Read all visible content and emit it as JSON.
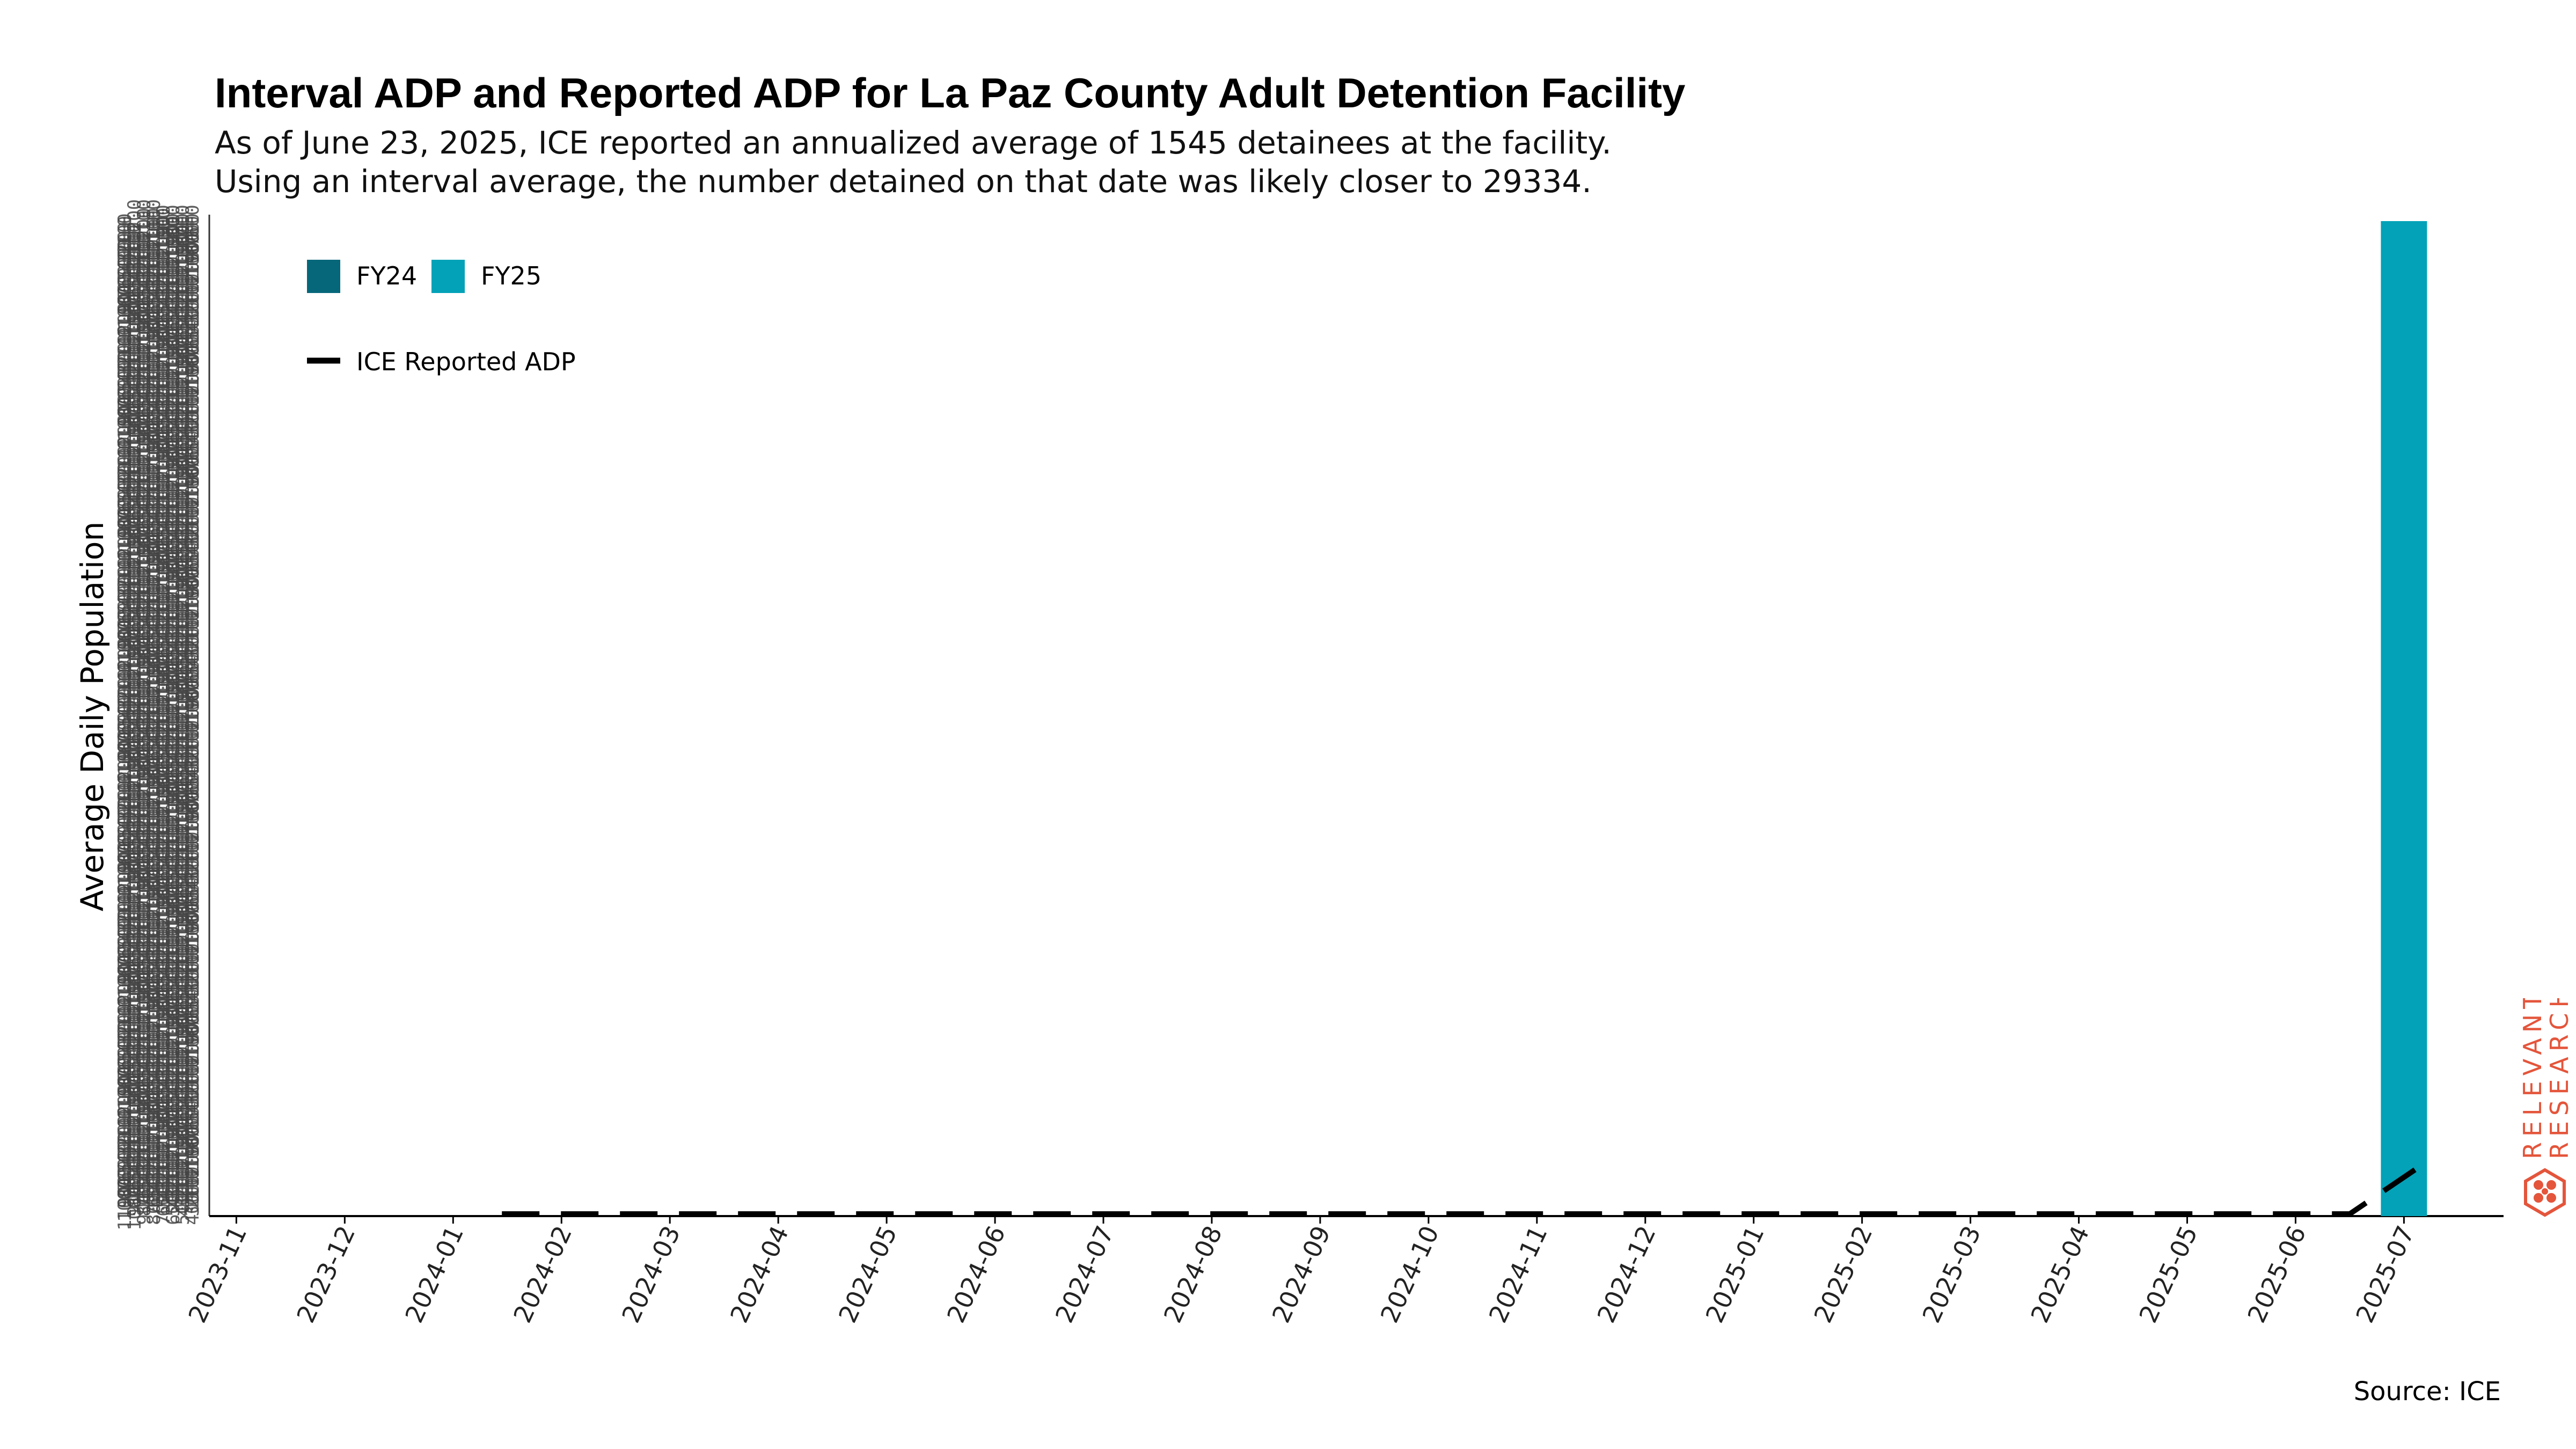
{
  "chart_data": {
    "type": "bar",
    "title": "Interval ADP and Reported ADP for La Paz County Adult Detention Facility",
    "subtitle_lines": [
      "As of June 23, 2025, ICE reported an annualized average of 1545 detainees at the facility.",
      "Using an interval average, the number detained on that date was likely closer to 29334."
    ],
    "ylabel": "Average Daily Population",
    "xlabel": "",
    "categories": [
      "2023-11",
      "2023-12",
      "2024-01",
      "2024-02",
      "2024-03",
      "2024-04",
      "2024-05",
      "2024-06",
      "2024-07",
      "2024-08",
      "2024-09",
      "2024-10",
      "2024-11",
      "2024-12",
      "2025-01",
      "2025-02",
      "2025-03",
      "2025-04",
      "2025-05",
      "2025-06",
      "2025-07"
    ],
    "series": [
      {
        "name": "FY24",
        "color": "#06677a",
        "values": [
          0,
          0,
          0,
          0,
          0,
          0,
          0,
          0,
          0,
          0,
          0,
          0,
          0,
          0,
          0,
          0,
          0,
          0,
          0,
          0,
          0
        ]
      },
      {
        "name": "FY25",
        "color": "#03a2b8",
        "values": [
          0,
          0,
          0,
          0,
          0,
          0,
          0,
          0,
          0,
          0,
          0,
          0,
          0,
          0,
          0,
          0,
          0,
          0,
          0,
          0,
          29334
        ]
      }
    ],
    "reported_adp": {
      "name": "ICE Reported ADP",
      "color": "#000000",
      "style": "dashed",
      "values": [
        null,
        null,
        null,
        0,
        0,
        0,
        0,
        0,
        0,
        0,
        0,
        0,
        0,
        0,
        0,
        0,
        0,
        0,
        0,
        0,
        1545
      ]
    },
    "ylim": [
      0,
      29334
    ],
    "grid": false,
    "legend_position": "top-left"
  },
  "source": "Source: ICE",
  "brand": {
    "line1": "RELEVANT",
    "line2": "RESEARCH",
    "color": "#e4553b"
  }
}
